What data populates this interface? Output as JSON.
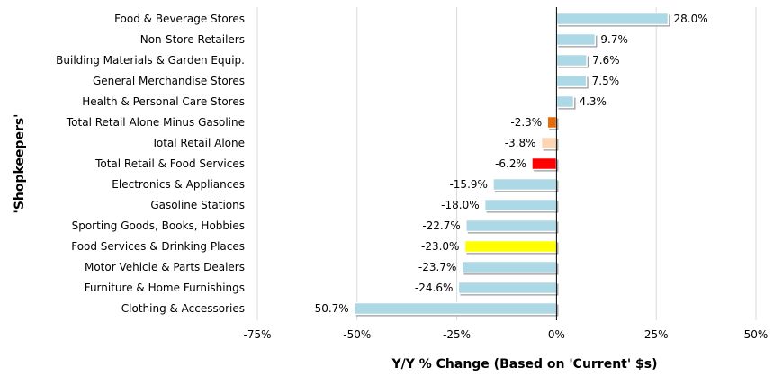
{
  "chart_data": {
    "type": "bar",
    "orientation": "horizontal",
    "title": "",
    "xlabel": "Y/Y % Change (Based on 'Current' $s)",
    "ylabel": "'Shopkeepers'",
    "xlim": [
      -75,
      50
    ],
    "xticks": [
      -75,
      -50,
      -25,
      0,
      25,
      50
    ],
    "xtick_labels": [
      "-75%",
      "-50%",
      "-25%",
      "0%",
      "25%",
      "50%"
    ],
    "grid": "vertical",
    "legend": "none",
    "bars": [
      {
        "category": "Food & Beverage Stores",
        "value": 28.0,
        "label": "28.0%",
        "color": "#add8e6"
      },
      {
        "category": "Non-Store Retailers",
        "value": 9.7,
        "label": "9.7%",
        "color": "#add8e6"
      },
      {
        "category": "Building Materials & Garden Equip.",
        "value": 7.6,
        "label": "7.6%",
        "color": "#add8e6"
      },
      {
        "category": "General Merchandise Stores",
        "value": 7.5,
        "label": "7.5%",
        "color": "#add8e6"
      },
      {
        "category": "Health & Personal Care Stores",
        "value": 4.3,
        "label": "4.3%",
        "color": "#add8e6"
      },
      {
        "category": "Total Retail Alone Minus Gasoline",
        "value": -2.3,
        "label": "-2.3%",
        "color": "#e46c0a"
      },
      {
        "category": "Total Retail Alone",
        "value": -3.8,
        "label": "-3.8%",
        "color": "#fcd5b5"
      },
      {
        "category": "Total Retail & Food Services",
        "value": -6.2,
        "label": "-6.2%",
        "color": "#ff0000"
      },
      {
        "category": "Electronics & Appliances",
        "value": -15.9,
        "label": "-15.9%",
        "color": "#add8e6"
      },
      {
        "category": "Gasoline Stations",
        "value": -18.0,
        "label": "-18.0%",
        "color": "#add8e6"
      },
      {
        "category": "Sporting Goods, Books, Hobbies",
        "value": -22.7,
        "label": "-22.7%",
        "color": "#add8e6"
      },
      {
        "category": "Food Services & Drinking Places",
        "value": -23.0,
        "label": "-23.0%",
        "color": "#ffff00"
      },
      {
        "category": "Motor Vehicle & Parts Dealers",
        "value": -23.7,
        "label": "-23.7%",
        "color": "#add8e6"
      },
      {
        "category": "Furniture & Home Furnishings",
        "value": -24.6,
        "label": "-24.6%",
        "color": "#add8e6"
      },
      {
        "category": "Clothing & Accessories",
        "value": -50.7,
        "label": "-50.7%",
        "color": "#add8e6"
      }
    ]
  }
}
